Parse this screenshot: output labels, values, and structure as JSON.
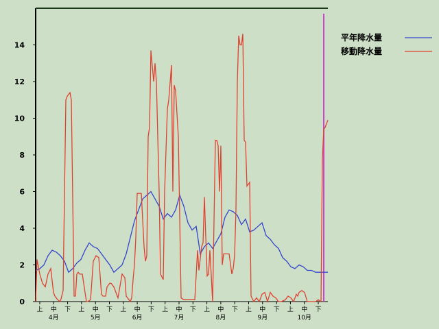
{
  "chart_data": {
    "type": "line",
    "title": "",
    "xlabel": "",
    "ylabel": "",
    "ylim": [
      0,
      16
    ],
    "yticks": [
      0,
      2,
      4,
      6,
      8,
      10,
      12,
      14
    ],
    "grid": false,
    "legend_position": "top-right",
    "background_color": "#cde0c7",
    "x_range": [
      0,
      213
    ],
    "x_period_ticks": [
      "上",
      "中",
      "下",
      "上",
      "中",
      "下",
      "上",
      "中",
      "下",
      "上",
      "中",
      "下",
      "上",
      "中",
      "下",
      "上",
      "中",
      "下",
      "上",
      "中",
      "下"
    ],
    "x_month_labels": [
      "4月",
      "5月",
      "6月",
      "7月",
      "8月",
      "9月",
      "10月"
    ],
    "current_marker": {
      "x": 210,
      "color": "#cc44cc"
    },
    "series": [
      {
        "name": "平年降水量",
        "color": "#3344cc",
        "x": [
          0,
          3,
          6,
          9,
          12,
          15,
          18,
          21,
          24,
          27,
          30,
          33,
          36,
          39,
          42,
          45,
          48,
          51,
          54,
          57,
          60,
          63,
          66,
          69,
          72,
          75,
          78,
          81,
          84,
          87,
          90,
          93,
          96,
          99,
          102,
          105,
          108,
          111,
          114,
          117,
          120,
          123,
          126,
          129,
          132,
          135,
          138,
          141,
          144,
          147,
          150,
          153,
          156,
          159,
          162,
          165,
          168,
          171,
          174,
          177,
          180,
          183,
          186,
          189,
          192,
          195,
          198,
          201,
          204,
          207,
          210,
          213
        ],
        "y": [
          1.7,
          1.8,
          2.0,
          2.5,
          2.8,
          2.7,
          2.5,
          2.2,
          1.6,
          1.8,
          2.1,
          2.3,
          2.8,
          3.2,
          3.0,
          2.9,
          2.6,
          2.3,
          2.0,
          1.6,
          1.8,
          2.0,
          2.6,
          3.5,
          4.4,
          5.0,
          5.6,
          5.8,
          6.0,
          5.6,
          5.2,
          4.5,
          4.8,
          4.6,
          5.0,
          5.8,
          5.2,
          4.3,
          3.9,
          4.1,
          2.6,
          3.0,
          3.2,
          2.9,
          3.3,
          3.7,
          4.6,
          5.0,
          4.9,
          4.7,
          4.2,
          4.5,
          3.8,
          3.9,
          4.1,
          4.3,
          3.6,
          3.4,
          3.1,
          2.9,
          2.4,
          2.2,
          1.9,
          1.8,
          2.0,
          1.9,
          1.7,
          1.7,
          1.6,
          1.6,
          1.6,
          1.6
        ]
      },
      {
        "name": "移動降水量",
        "color": "#e04030",
        "x": [
          0,
          1,
          3,
          5,
          7,
          9,
          11,
          13,
          14,
          16,
          18,
          20,
          22,
          23,
          25,
          26,
          28,
          29,
          30,
          31,
          32,
          34,
          37,
          38,
          40,
          42,
          44,
          46,
          48,
          49,
          51,
          52,
          54,
          55,
          57,
          60,
          63,
          65,
          66,
          69,
          70,
          71,
          72,
          73,
          74,
          77,
          79,
          80,
          81,
          82,
          83,
          84,
          86,
          87,
          88,
          90,
          91,
          93,
          94,
          96,
          97,
          99,
          100,
          101,
          102,
          104,
          106,
          108,
          112,
          116,
          118,
          119,
          121,
          122,
          123,
          124,
          125,
          126,
          127,
          129,
          131,
          132,
          133,
          134,
          135,
          136,
          137,
          139,
          141,
          143,
          144,
          145,
          146,
          147,
          148,
          149,
          150,
          151,
          152,
          153,
          154,
          156,
          157,
          159,
          161,
          163,
          165,
          167,
          169,
          171,
          173,
          175,
          177,
          179,
          182,
          184,
          186,
          188,
          190,
          191,
          192,
          194,
          196,
          198,
          200,
          202,
          204,
          206,
          208,
          209,
          210,
          211,
          213
        ],
        "y": [
          0.0,
          2.3,
          1.5,
          1.0,
          0.8,
          1.5,
          1.8,
          0.5,
          0.3,
          0.1,
          0.0,
          0.6,
          11.0,
          11.2,
          11.4,
          11.0,
          0.3,
          0.3,
          1.5,
          1.6,
          1.5,
          1.5,
          0.0,
          0.0,
          0.1,
          2.2,
          2.5,
          2.4,
          0.4,
          0.3,
          0.3,
          0.8,
          1.0,
          1.0,
          0.8,
          0.2,
          1.5,
          1.3,
          0.3,
          0.0,
          0.2,
          1.2,
          2.0,
          3.5,
          5.9,
          5.9,
          3.0,
          2.2,
          2.5,
          9.0,
          9.5,
          13.7,
          12.0,
          13.0,
          12.0,
          6.0,
          1.5,
          1.2,
          6.0,
          10.5,
          11.0,
          12.9,
          6.0,
          11.8,
          11.5,
          9.0,
          0.2,
          0.1,
          0.1,
          0.1,
          2.8,
          1.7,
          3.0,
          3.2,
          5.7,
          3.5,
          1.4,
          1.5,
          2.8,
          0.0,
          8.8,
          8.8,
          8.5,
          6.0,
          8.5,
          2.0,
          2.6,
          2.6,
          2.6,
          1.5,
          1.8,
          2.5,
          5.0,
          12.0,
          14.5,
          14.0,
          14.0,
          14.6,
          8.8,
          8.7,
          6.3,
          6.5,
          0.3,
          0.0,
          0.2,
          0.0,
          0.4,
          0.5,
          0.0,
          0.5,
          0.3,
          0.2,
          0.0,
          0.0,
          0.1,
          0.3,
          0.2,
          0.0,
          0.4,
          0.3,
          0.5,
          0.6,
          0.5,
          0.0,
          0.0,
          0.0,
          0.0,
          0.1,
          0.0,
          7.8,
          9.4,
          9.5,
          9.9
        ]
      }
    ]
  }
}
